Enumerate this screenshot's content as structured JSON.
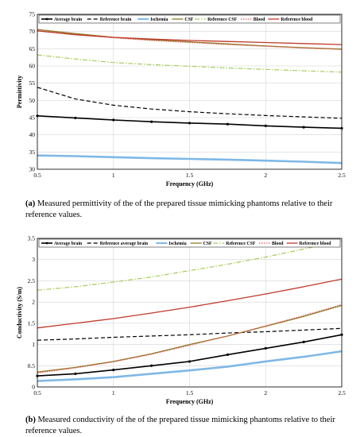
{
  "captions": {
    "a_label": "(a)",
    "a_text": "Measured permittivity of the of the prepared tissue mimicking phantoms relative to their reference values.",
    "b_label": "(b)",
    "b_text": "Measured conductivity of the of the prepared tissue mimicking phantoms relative to their reference values."
  },
  "chart_data": [
    {
      "type": "line",
      "xlabel": "Frequency (GHz)",
      "ylabel": "Permittivity",
      "xlim": [
        0.5,
        2.5
      ],
      "ylim": [
        30,
        75
      ],
      "xticks": [
        "0.5",
        "1",
        "1.5",
        "2",
        "2.5"
      ],
      "yticks": [
        "30",
        "35",
        "40",
        "45",
        "50",
        "55",
        "60",
        "65",
        "70",
        "75"
      ],
      "grid": true,
      "legend_position": "top",
      "x": [
        0.5,
        0.75,
        1.0,
        1.25,
        1.5,
        1.75,
        2.0,
        2.25,
        2.5
      ],
      "series": [
        {
          "name": "Average brain",
          "color": "#000000",
          "style": "solid-markers",
          "values": [
            45.5,
            44.9,
            44.3,
            43.8,
            43.4,
            43.1,
            42.6,
            42.2,
            41.9
          ]
        },
        {
          "name": "Reference brain",
          "color": "#000000",
          "style": "dashed",
          "values": [
            53.8,
            50.4,
            48.6,
            47.5,
            46.7,
            46.1,
            45.6,
            45.2,
            44.8
          ]
        },
        {
          "name": "Ischemia",
          "color": "#7fb8e6",
          "style": "solid-thick",
          "values": [
            34.0,
            33.8,
            33.5,
            33.2,
            33.0,
            32.8,
            32.5,
            32.2,
            31.8
          ]
        },
        {
          "name": "CSF",
          "color": "#8c7a22",
          "style": "solid",
          "values": [
            70.6,
            69.4,
            68.3,
            67.6,
            67.0,
            66.4,
            65.8,
            65.3,
            64.9
          ]
        },
        {
          "name": "Reference CSF",
          "color": "#a8cc5a",
          "style": "dash-dot",
          "values": [
            63.2,
            62.0,
            61.0,
            60.4,
            59.9,
            59.4,
            59.0,
            58.6,
            58.2
          ]
        },
        {
          "name": "Blood",
          "color": "#e05a5a",
          "style": "dotted",
          "values": [
            70.2,
            69.0,
            68.2,
            67.4,
            66.8,
            66.2,
            65.7,
            65.2,
            64.8
          ]
        },
        {
          "name": "Reference blood",
          "color": "#c0392b",
          "style": "solid",
          "values": [
            70.2,
            69.1,
            68.3,
            67.8,
            67.4,
            67.1,
            66.8,
            66.5,
            66.2
          ]
        }
      ]
    },
    {
      "type": "line",
      "xlabel": "Frequency (GHz)",
      "ylabel": "Conductivity (S/m)",
      "xlim": [
        0.5,
        2.5
      ],
      "ylim": [
        0,
        3.5
      ],
      "xticks": [
        "0.5",
        "1",
        "1.5",
        "2",
        "2.5"
      ],
      "yticks": [
        "0",
        "0.5",
        "1",
        "1.5",
        "2",
        "2.5",
        "3",
        "3.5"
      ],
      "grid": true,
      "legend_position": "top",
      "x": [
        0.5,
        0.75,
        1.0,
        1.25,
        1.5,
        1.75,
        2.0,
        2.25,
        2.5
      ],
      "series": [
        {
          "name": "Average brain",
          "color": "#000000",
          "style": "solid-markers",
          "values": [
            0.26,
            0.31,
            0.4,
            0.5,
            0.6,
            0.76,
            0.91,
            1.06,
            1.23
          ]
        },
        {
          "name": "Reference average brain",
          "color": "#000000",
          "style": "dashed",
          "values": [
            1.1,
            1.13,
            1.17,
            1.2,
            1.23,
            1.27,
            1.3,
            1.34,
            1.38
          ]
        },
        {
          "name": "Ischemia",
          "color": "#7fb8e6",
          "style": "solid-thick",
          "values": [
            0.14,
            0.18,
            0.23,
            0.31,
            0.39,
            0.48,
            0.6,
            0.71,
            0.84
          ]
        },
        {
          "name": "CSF",
          "color": "#8c7a22",
          "style": "solid",
          "values": [
            0.35,
            0.46,
            0.6,
            0.78,
            1.0,
            1.2,
            1.43,
            1.66,
            1.92
          ]
        },
        {
          "name": "Reference CSF",
          "color": "#a8cc5a",
          "style": "dash-dot",
          "values": [
            2.28,
            2.36,
            2.47,
            2.59,
            2.74,
            2.89,
            3.06,
            3.25,
            3.45
          ]
        },
        {
          "name": "Blood",
          "color": "#e05a5a",
          "style": "dotted",
          "values": [
            0.33,
            0.45,
            0.59,
            0.77,
            0.98,
            1.2,
            1.44,
            1.68,
            1.94
          ]
        },
        {
          "name": "Reference blood",
          "color": "#c0392b",
          "style": "solid",
          "values": [
            1.39,
            1.5,
            1.61,
            1.74,
            1.88,
            2.03,
            2.19,
            2.36,
            2.54
          ]
        }
      ]
    }
  ]
}
